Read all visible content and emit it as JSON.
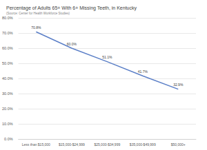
{
  "chart_data": {
    "type": "line",
    "title": "Percentage of Adults 65+ With 6+ Missing Teeth, in Kentucky",
    "subtitle": "(Source: Center for Health Workforce Studies)",
    "categories": [
      "Less than $15,000",
      "$15,000-$24,999",
      "$25,000-$34,999",
      "$35,000-$49,999",
      "$50,000+"
    ],
    "values": [
      70.8,
      60.0,
      51.1,
      41.7,
      32.9
    ],
    "value_labels": [
      "70.8%",
      "60.0%",
      "51.1%",
      "41.7%",
      "32.9%"
    ],
    "color": "#5b7fc7",
    "ylim": [
      0,
      80
    ],
    "yticks": [
      {
        "value": 0,
        "label": "0.0%"
      },
      {
        "value": 10,
        "label": "10.0%"
      },
      {
        "value": 20,
        "label": "20.0%"
      },
      {
        "value": 30,
        "label": "30.0%"
      },
      {
        "value": 40,
        "label": "40.0%"
      },
      {
        "value": 50,
        "label": "50.0%"
      },
      {
        "value": 60,
        "label": "60.0%"
      },
      {
        "value": 70,
        "label": "70.0%"
      },
      {
        "value": 80,
        "label": "80.0%"
      }
    ],
    "grid": true,
    "data_labels": true
  }
}
